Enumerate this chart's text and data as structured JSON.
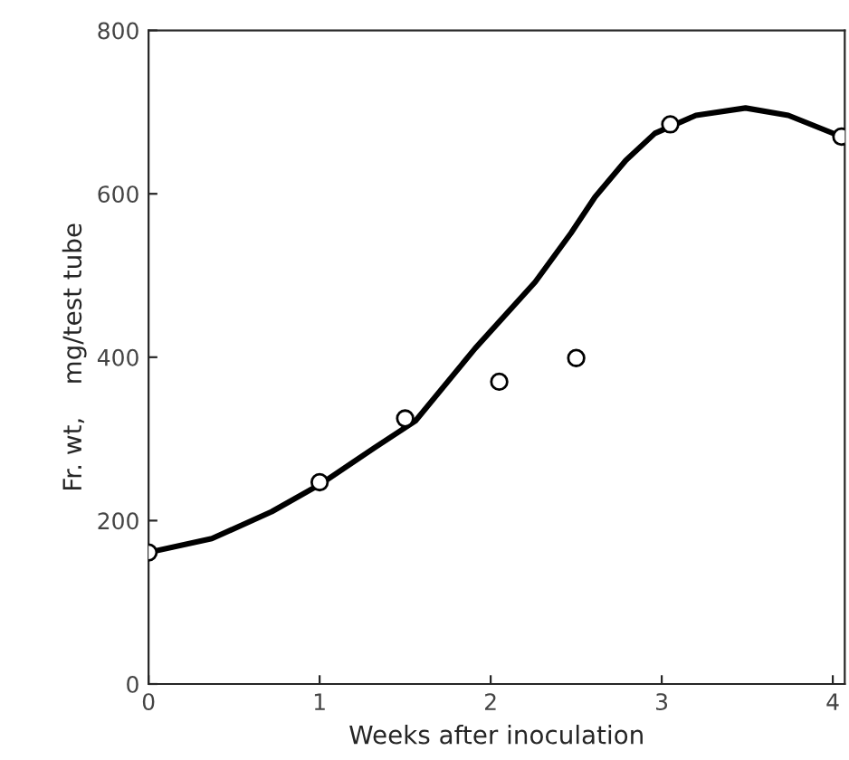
{
  "chart_data": {
    "type": "scatter",
    "xlabel": "Weeks after inoculation",
    "ylabel": "Fr. wt,    mg/test tube",
    "series": [
      {
        "color": "#000000",
        "marker": "circle",
        "x": [
          0,
          1,
          1.5,
          2.05,
          2.5,
          3.05,
          4.05
        ],
        "values": [
          161,
          247,
          325,
          370,
          399,
          685,
          670
        ]
      },
      {
        "type": "line",
        "color": "#000000",
        "marker": "none",
        "x": [
          0,
          0.37,
          0.72,
          1,
          1.32,
          1.56,
          1.91,
          2.26,
          2.47,
          2.61,
          2.79,
          2.96,
          3.2,
          3.49,
          3.74,
          4.05
        ],
        "values": [
          161,
          178,
          211,
          244,
          289,
          322,
          411,
          492,
          552,
          596,
          641,
          674,
          696,
          705,
          696,
          670
        ]
      }
    ],
    "xlim": [
      0,
      4.07
    ],
    "ylim": [
      0,
      800
    ],
    "xticks": [
      0,
      1,
      2,
      3,
      4
    ],
    "yticks": [
      0,
      200,
      400,
      600,
      800
    ],
    "grid": false,
    "legend": false
  }
}
